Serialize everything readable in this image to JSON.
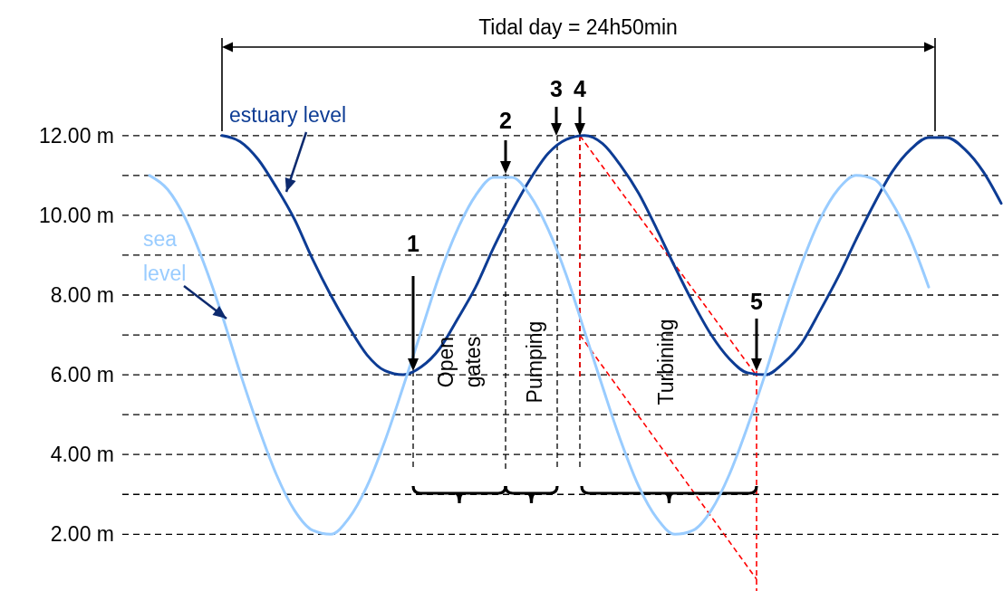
{
  "chart_data": {
    "type": "line",
    "title": "Tidal day = 24h50min",
    "categories": [
      null,
      null,
      null,
      null,
      null,
      null,
      null,
      null,
      null,
      null,
      null,
      null,
      null,
      null,
      null,
      null,
      null,
      null,
      null,
      null,
      null,
      null,
      null,
      null,
      null,
      null,
      null,
      null,
      null,
      null,
      null,
      null,
      null,
      null,
      null,
      null,
      null,
      null,
      null,
      null,
      null,
      null,
      null,
      null,
      null,
      null,
      null,
      null
    ],
    "series": [
      {
        "name": "estuary level",
        "color": "#0d3c94",
        "values": [
          null,
          null,
          null,
          null,
          12.0,
          11.85,
          11.4,
          10.7,
          9.9,
          8.9,
          8.0,
          7.2,
          6.5,
          6.1,
          6.0,
          6.2,
          6.65,
          7.4,
          8.2,
          9.2,
          10.1,
          10.9,
          11.55,
          11.9,
          12.0,
          11.8,
          11.25,
          10.55,
          9.65,
          8.7,
          7.8,
          7.0,
          6.4,
          6.05,
          6.0,
          6.3,
          6.8,
          7.6,
          8.45,
          9.4,
          10.3,
          11.1,
          11.65,
          11.95,
          11.95,
          11.65,
          11.1,
          10.3
        ]
      },
      {
        "name": "sea level",
        "color": "#99ccff",
        "values": [
          11.0,
          10.65,
          9.9,
          8.8,
          7.5,
          6.05,
          4.7,
          3.5,
          2.6,
          2.1,
          2.0,
          2.4,
          3.2,
          4.35,
          5.7,
          7.1,
          8.5,
          9.65,
          10.5,
          10.95,
          10.95,
          10.5,
          9.65,
          8.5,
          7.1,
          5.7,
          4.35,
          3.2,
          2.4,
          2.0,
          2.1,
          2.6,
          3.5,
          4.7,
          6.05,
          7.5,
          8.8,
          9.9,
          10.65,
          11.0,
          10.9,
          10.3,
          9.4,
          8.2,
          null,
          null,
          null,
          null
        ]
      }
    ],
    "ylim": [
      0.6,
      15.4
    ],
    "yticks": [
      {
        "value": 2,
        "label": "2.00 m"
      },
      {
        "value": 3,
        "label": null
      },
      {
        "value": 4,
        "label": "4.00 m"
      },
      {
        "value": 5,
        "label": null
      },
      {
        "value": 6,
        "label": "6.00 m"
      },
      {
        "value": 7,
        "label": null
      },
      {
        "value": 8,
        "label": "8.00 m"
      },
      {
        "value": 9,
        "label": null
      },
      {
        "value": 10,
        "label": "10.00 m"
      },
      {
        "value": 11,
        "label": null
      },
      {
        "value": 12,
        "label": "12.00 m"
      }
    ],
    "grid": "y",
    "tick_labels": "y",
    "annotations": [
      "1",
      "2",
      "3",
      "4",
      "5",
      "Open gates",
      "Pumping",
      "Turbining"
    ]
  }
}
